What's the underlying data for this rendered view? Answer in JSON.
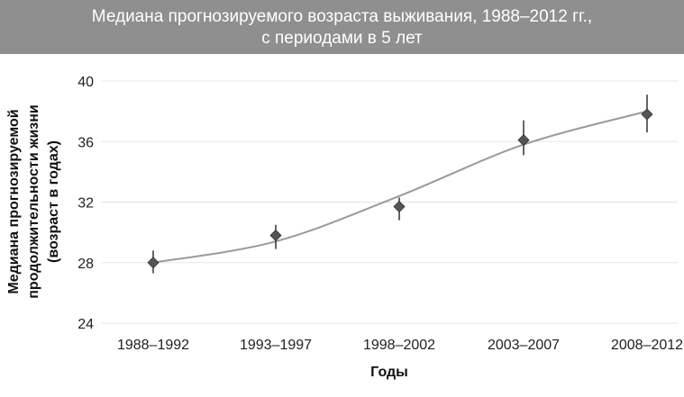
{
  "chart_data": {
    "type": "line",
    "title_lines": [
      "Медиана прогнозируемого возраста выживания, 1988–2012 гг.,",
      "с периодами в 5 лет"
    ],
    "xlabel": "Годы",
    "ylabel_lines": [
      "Медиана прогнозируемой",
      "продолжительности жизни",
      "(возраст в годах)"
    ],
    "categories": [
      "1988–1992",
      "1993–1997",
      "1998–2002",
      "2003–2007",
      "2008–2012"
    ],
    "values": [
      28.0,
      29.8,
      31.7,
      36.1,
      37.8
    ],
    "error_low": [
      27.3,
      28.9,
      30.8,
      35.1,
      36.6
    ],
    "error_high": [
      28.8,
      30.5,
      32.3,
      37.4,
      39.1
    ],
    "trend": [
      28.0,
      29.4,
      32.4,
      35.8,
      38.0
    ],
    "yticks": [
      24,
      28,
      32,
      36,
      40
    ],
    "ylim": [
      24,
      40
    ],
    "grid": true,
    "colors": {
      "marker": "#555555",
      "trend": "#9a9a9a",
      "grid": "#e6e6e6",
      "title_bg": "#8f8f8f"
    }
  }
}
